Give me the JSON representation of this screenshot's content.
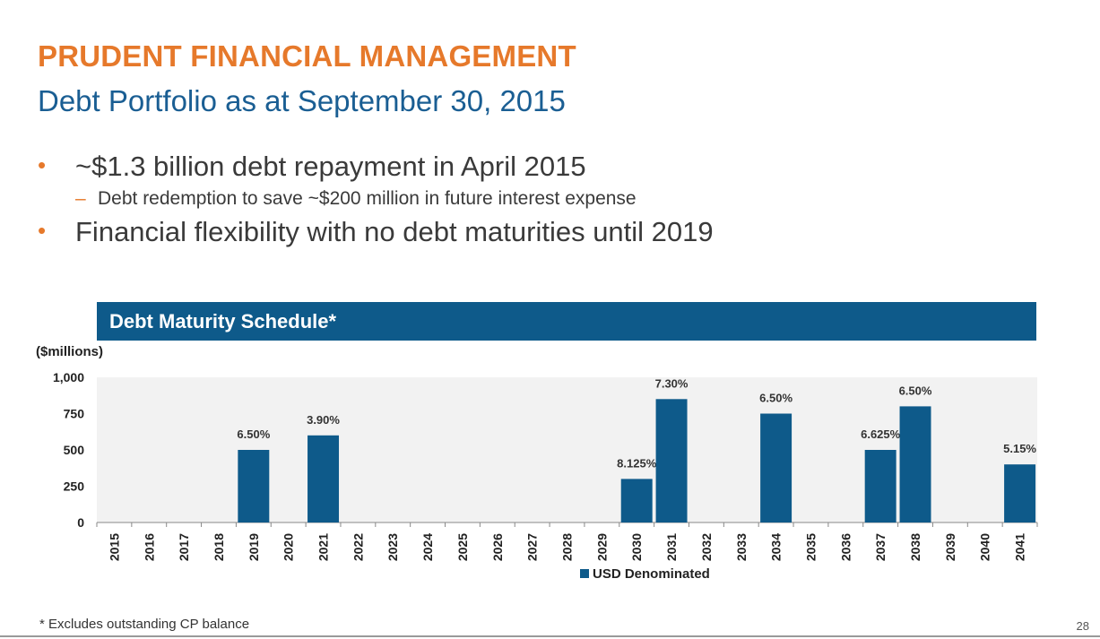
{
  "slide": {
    "title": "PRUDENT FINANCIAL MANAGEMENT",
    "subtitle": "Debt Portfolio as at September 30, 2015",
    "bullets": [
      {
        "marker": "•",
        "text": "~$1.3 billion debt repayment in April 2015"
      },
      {
        "marker": "–",
        "text": "Debt redemption to save ~$200 million in future interest expense"
      },
      {
        "marker": "•",
        "text": "Financial flexibility with no debt maturities until 2019"
      }
    ],
    "footnote": "* Excludes outstanding CP balance",
    "page_number": "28"
  },
  "colors": {
    "accent_orange": "#E6792B",
    "brand_blue": "#0E5A8A",
    "subtitle_blue": "#1A5E93",
    "plot_background": "#F2F2F2"
  },
  "chart_data": {
    "type": "bar",
    "title": "Debt Maturity Schedule*",
    "ylabel": "($millions)",
    "ylim": [
      0,
      1000
    ],
    "yticks": [
      0,
      250,
      500,
      750,
      1000
    ],
    "ytick_labels": [
      "0",
      "250",
      "500",
      "750",
      "1,000"
    ],
    "categories": [
      "2015",
      "2016",
      "2017",
      "2018",
      "2019",
      "2020",
      "2021",
      "2022",
      "2023",
      "2024",
      "2025",
      "2026",
      "2027",
      "2028",
      "2029",
      "2030",
      "2031",
      "2032",
      "2033",
      "2034",
      "2035",
      "2036",
      "2037",
      "2038",
      "2039",
      "2040",
      "2041"
    ],
    "series": [
      {
        "name": "USD Denominated",
        "values": [
          0,
          0,
          0,
          0,
          500,
          0,
          600,
          0,
          0,
          0,
          0,
          0,
          0,
          0,
          0,
          300,
          850,
          0,
          0,
          750,
          0,
          0,
          500,
          800,
          0,
          0,
          400
        ],
        "labels": [
          "",
          "",
          "",
          "",
          "6.50%",
          "",
          "3.90%",
          "",
          "",
          "",
          "",
          "",
          "",
          "",
          "",
          "8.125%",
          "7.30%",
          "",
          "",
          "6.50%",
          "",
          "",
          "6.625%",
          "6.50%",
          "",
          "",
          "5.15%"
        ]
      }
    ],
    "legend": "bottom-center",
    "grid": false
  }
}
